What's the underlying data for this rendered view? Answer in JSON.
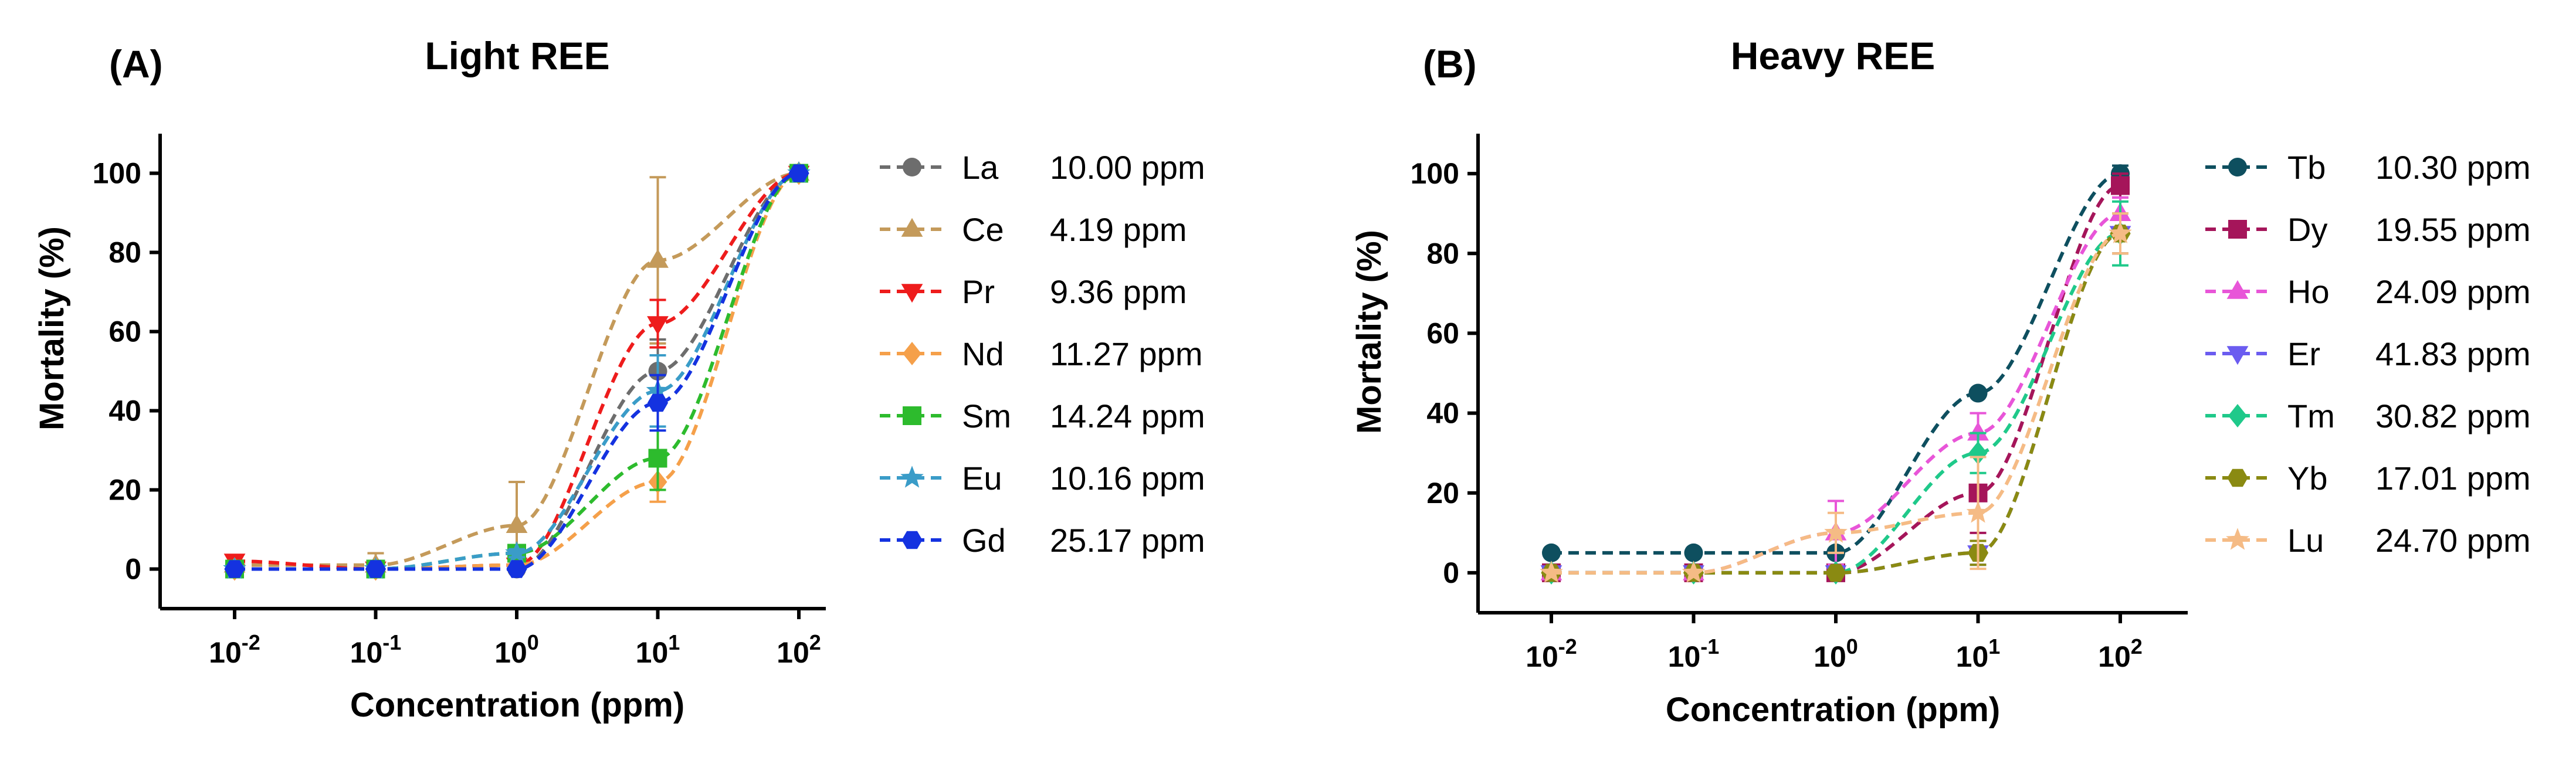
{
  "chart_data": [
    {
      "type": "line",
      "panel_label": "(A)",
      "title": "Light REE",
      "xlabel": "Concentration (ppm)",
      "ylabel": "Mortality (%)",
      "xscale": "log",
      "x": [
        0.01,
        0.1,
        1,
        10,
        100
      ],
      "x_tick_labels": [
        {
          "base": "10",
          "exp": "-2"
        },
        {
          "base": "10",
          "exp": "-1"
        },
        {
          "base": "10",
          "exp": "0"
        },
        {
          "base": "10",
          "exp": "1"
        },
        {
          "base": "10",
          "exp": "2"
        }
      ],
      "ylim": [
        -10,
        110
      ],
      "y_ticks": [
        0,
        20,
        40,
        60,
        80,
        100
      ],
      "legend_position": "right",
      "series": [
        {
          "name": "La",
          "lc50": "10.00 ppm",
          "color": "#6d6d6d",
          "marker": "circle",
          "values": [
            0,
            0,
            0,
            50,
            100
          ],
          "errors": [
            0,
            0,
            0,
            8,
            0
          ]
        },
        {
          "name": "Ce",
          "lc50": "4.19 ppm",
          "color": "#c49a5a",
          "marker": "triangle-up",
          "values": [
            1,
            1,
            11,
            78,
            100
          ],
          "errors": [
            1,
            3,
            11,
            21,
            0
          ]
        },
        {
          "name": "Pr",
          "lc50": "9.36 ppm",
          "color": "#ee1c1c",
          "marker": "triangle-down",
          "values": [
            2,
            0,
            1,
            62,
            100
          ],
          "errors": [
            1,
            0,
            0,
            6,
            0
          ]
        },
        {
          "name": "Nd",
          "lc50": "11.27 ppm",
          "color": "#f5a04a",
          "marker": "diamond",
          "values": [
            0,
            0,
            1,
            22,
            100
          ],
          "errors": [
            0,
            0,
            0,
            5,
            0
          ]
        },
        {
          "name": "Sm",
          "lc50": "14.24 ppm",
          "color": "#2dbb2d",
          "marker": "square",
          "values": [
            0,
            0,
            4,
            28,
            100
          ],
          "errors": [
            0,
            0,
            1,
            8,
            0
          ]
        },
        {
          "name": "Eu",
          "lc50": "10.16 ppm",
          "color": "#3a9cc8",
          "marker": "star",
          "values": [
            0,
            0,
            4,
            45,
            100
          ],
          "errors": [
            0,
            0,
            1,
            9,
            0
          ]
        },
        {
          "name": "Gd",
          "lc50": "25.17 ppm",
          "color": "#1432e0",
          "marker": "hexagon",
          "values": [
            0,
            0,
            0,
            42,
            100
          ],
          "errors": [
            0,
            0,
            0,
            7,
            0
          ]
        }
      ]
    },
    {
      "type": "line",
      "panel_label": "(B)",
      "title": "Heavy REE",
      "xlabel": "Concentration (ppm)",
      "ylabel": "Mortality (%)",
      "xscale": "log",
      "x": [
        0.01,
        0.1,
        1,
        10,
        100
      ],
      "x_tick_labels": [
        {
          "base": "10",
          "exp": "-2"
        },
        {
          "base": "10",
          "exp": "-1"
        },
        {
          "base": "10",
          "exp": "0"
        },
        {
          "base": "10",
          "exp": "1"
        },
        {
          "base": "10",
          "exp": "2"
        }
      ],
      "ylim": [
        -10,
        110
      ],
      "y_ticks": [
        0,
        20,
        40,
        60,
        80,
        100
      ],
      "legend_position": "right",
      "series": [
        {
          "name": "Tb",
          "lc50": "10.30 ppm",
          "color": "#0e4f5f",
          "marker": "circle",
          "values": [
            5,
            5,
            5,
            45,
            100
          ],
          "errors": [
            0,
            0,
            0,
            0,
            2
          ]
        },
        {
          "name": "Dy",
          "lc50": "19.55 ppm",
          "color": "#a5155a",
          "marker": "square",
          "values": [
            0,
            0,
            0,
            20,
            97
          ],
          "errors": [
            0,
            0,
            0,
            10,
            3
          ]
        },
        {
          "name": "Ho",
          "lc50": "24.09 ppm",
          "color": "#e855d8",
          "marker": "triangle-up",
          "values": [
            0,
            0,
            10,
            35,
            90
          ],
          "errors": [
            0,
            0,
            8,
            5,
            4
          ]
        },
        {
          "name": "Er",
          "lc50": "41.83 ppm",
          "color": "#6b5cf0",
          "marker": "triangle-down",
          "values": [
            0,
            0,
            0,
            5,
            85
          ],
          "errors": [
            0,
            0,
            0,
            3,
            5
          ]
        },
        {
          "name": "Tm",
          "lc50": "30.82 ppm",
          "color": "#1fc98a",
          "marker": "diamond",
          "values": [
            0,
            0,
            0,
            30,
            85
          ],
          "errors": [
            0,
            0,
            0,
            5,
            8
          ]
        },
        {
          "name": "Yb",
          "lc50": "17.01 ppm",
          "color": "#8a8a12",
          "marker": "hexagon",
          "values": [
            0,
            0,
            0,
            5,
            85
          ],
          "errors": [
            0,
            0,
            0,
            3,
            5
          ]
        },
        {
          "name": "Lu",
          "lc50": "24.70 ppm",
          "color": "#f5bb85",
          "marker": "star",
          "values": [
            0,
            0,
            10,
            15,
            85
          ],
          "errors": [
            0,
            0,
            5,
            14,
            5
          ]
        }
      ]
    }
  ]
}
